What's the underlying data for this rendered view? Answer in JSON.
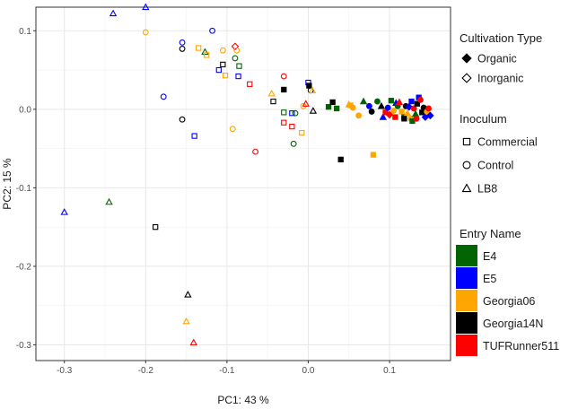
{
  "chart_data": {
    "type": "scatter",
    "xlabel": "PC1:  43 %",
    "ylabel": "PC2:  15 %",
    "xlim": [
      -0.335,
      0.175
    ],
    "ylim": [
      -0.32,
      0.13
    ],
    "xticks": [
      -0.3,
      -0.2,
      -0.1,
      0.0,
      0.1
    ],
    "xtick_labels": [
      "-0.3",
      "-0.2",
      "-0.1",
      "0.0",
      "0.1"
    ],
    "yticks": [
      -0.3,
      -0.2,
      -0.1,
      0.0,
      0.1
    ],
    "ytick_labels": [
      "-0.3",
      "-0.2",
      "-0.1",
      "0.0",
      "0.1"
    ],
    "grid": true,
    "legend_placement": "right",
    "legends": {
      "cultivation": {
        "title": "Cultivation Type",
        "items": [
          {
            "label": "Organic",
            "shape": "diamond",
            "filled": true
          },
          {
            "label": "Inorganic",
            "shape": "diamond",
            "filled": false
          }
        ]
      },
      "inoculum": {
        "title": "Inoculum",
        "items": [
          {
            "label": "Commercial",
            "shape": "square"
          },
          {
            "label": "Control",
            "shape": "circle"
          },
          {
            "label": "LB8",
            "shape": "triangle"
          }
        ]
      },
      "entry": {
        "title": "Entry Name",
        "items": [
          {
            "label": "E4",
            "color": "#006400"
          },
          {
            "label": "E5",
            "color": "#0000ff"
          },
          {
            "label": "Georgia06",
            "color": "#ffa500"
          },
          {
            "label": "Georgia14N",
            "color": "#000000"
          },
          {
            "label": "TUFRunner511",
            "color": "#ff0000"
          }
        ]
      }
    },
    "points": [
      {
        "x": -0.3,
        "y": -0.131,
        "shape": "triangle",
        "filled": false,
        "entry": "E5"
      },
      {
        "x": -0.245,
        "y": -0.118,
        "shape": "triangle",
        "filled": false,
        "entry": "E4"
      },
      {
        "x": -0.24,
        "y": 0.122,
        "shape": "triangle",
        "filled": false,
        "entry": "E5"
      },
      {
        "x": -0.2,
        "y": 0.13,
        "shape": "triangle",
        "filled": false,
        "entry": "E5"
      },
      {
        "x": -0.2,
        "y": 0.098,
        "shape": "circle",
        "filled": false,
        "entry": "Georgia06"
      },
      {
        "x": -0.178,
        "y": 0.016,
        "shape": "circle",
        "filled": false,
        "entry": "E5"
      },
      {
        "x": -0.188,
        "y": -0.15,
        "shape": "square",
        "filled": false,
        "entry": "Georgia14N"
      },
      {
        "x": -0.155,
        "y": 0.085,
        "shape": "circle",
        "filled": false,
        "entry": "E5"
      },
      {
        "x": -0.155,
        "y": 0.077,
        "shape": "circle",
        "filled": false,
        "entry": "Georgia14N"
      },
      {
        "x": -0.155,
        "y": -0.013,
        "shape": "circle",
        "filled": false,
        "entry": "Georgia14N"
      },
      {
        "x": -0.14,
        "y": -0.034,
        "shape": "square",
        "filled": false,
        "entry": "E5"
      },
      {
        "x": -0.148,
        "y": -0.236,
        "shape": "triangle",
        "filled": false,
        "entry": "Georgia14N"
      },
      {
        "x": -0.15,
        "y": -0.27,
        "shape": "triangle",
        "filled": false,
        "entry": "Georgia06"
      },
      {
        "x": -0.141,
        "y": -0.297,
        "shape": "triangle",
        "filled": false,
        "entry": "TUFRunner511"
      },
      {
        "x": -0.135,
        "y": 0.078,
        "shape": "square",
        "filled": false,
        "entry": "Georgia06"
      },
      {
        "x": -0.127,
        "y": 0.073,
        "shape": "triangle",
        "filled": false,
        "entry": "E4"
      },
      {
        "x": -0.125,
        "y": 0.069,
        "shape": "square",
        "filled": false,
        "entry": "Georgia06"
      },
      {
        "x": -0.118,
        "y": 0.1,
        "shape": "circle",
        "filled": false,
        "entry": "E5"
      },
      {
        "x": -0.11,
        "y": 0.05,
        "shape": "square",
        "filled": false,
        "entry": "E5"
      },
      {
        "x": -0.105,
        "y": 0.075,
        "shape": "circle",
        "filled": false,
        "entry": "Georgia06"
      },
      {
        "x": -0.105,
        "y": 0.057,
        "shape": "square",
        "filled": false,
        "entry": "Georgia14N"
      },
      {
        "x": -0.102,
        "y": 0.043,
        "shape": "square",
        "filled": false,
        "entry": "Georgia06"
      },
      {
        "x": -0.093,
        "y": -0.025,
        "shape": "circle",
        "filled": false,
        "entry": "Georgia06"
      },
      {
        "x": -0.09,
        "y": 0.08,
        "shape": "diamond",
        "filled": false,
        "entry": "TUFRunner511"
      },
      {
        "x": -0.088,
        "y": 0.075,
        "shape": "circle",
        "filled": false,
        "entry": "Georgia06"
      },
      {
        "x": -0.09,
        "y": 0.065,
        "shape": "circle",
        "filled": false,
        "entry": "E4"
      },
      {
        "x": -0.085,
        "y": 0.055,
        "shape": "square",
        "filled": false,
        "entry": "E4"
      },
      {
        "x": -0.086,
        "y": 0.042,
        "shape": "square",
        "filled": false,
        "entry": "E5"
      },
      {
        "x": -0.072,
        "y": 0.032,
        "shape": "square",
        "filled": false,
        "entry": "TUFRunner511"
      },
      {
        "x": -0.065,
        "y": -0.054,
        "shape": "circle",
        "filled": false,
        "entry": "TUFRunner511"
      },
      {
        "x": -0.045,
        "y": 0.02,
        "shape": "triangle",
        "filled": false,
        "entry": "Georgia06"
      },
      {
        "x": -0.043,
        "y": 0.01,
        "shape": "square",
        "filled": false,
        "entry": "Georgia14N"
      },
      {
        "x": -0.03,
        "y": 0.042,
        "shape": "circle",
        "filled": false,
        "entry": "TUFRunner511"
      },
      {
        "x": -0.03,
        "y": 0.025,
        "shape": "square",
        "filled": true,
        "entry": "Georgia14N"
      },
      {
        "x": -0.03,
        "y": -0.004,
        "shape": "square",
        "filled": false,
        "entry": "E4"
      },
      {
        "x": -0.03,
        "y": -0.017,
        "shape": "square",
        "filled": false,
        "entry": "TUFRunner511"
      },
      {
        "x": -0.02,
        "y": -0.005,
        "shape": "square",
        "filled": false,
        "entry": "E5"
      },
      {
        "x": -0.02,
        "y": -0.022,
        "shape": "square",
        "filled": false,
        "entry": "TUFRunner511"
      },
      {
        "x": -0.018,
        "y": -0.044,
        "shape": "circle",
        "filled": false,
        "entry": "E4"
      },
      {
        "x": -0.016,
        "y": -0.005,
        "shape": "circle",
        "filled": false,
        "entry": "E4"
      },
      {
        "x": -0.006,
        "y": 0.004,
        "shape": "circle",
        "filled": false,
        "entry": "Georgia06"
      },
      {
        "x": -0.003,
        "y": 0.007,
        "shape": "triangle",
        "filled": false,
        "entry": "TUFRunner511"
      },
      {
        "x": -0.008,
        "y": -0.03,
        "shape": "square",
        "filled": false,
        "entry": "Georgia06"
      },
      {
        "x": 0.0,
        "y": 0.034,
        "shape": "square",
        "filled": false,
        "entry": "E5"
      },
      {
        "x": 0.001,
        "y": 0.03,
        "shape": "square",
        "filled": true,
        "entry": "Georgia14N"
      },
      {
        "x": 0.003,
        "y": 0.024,
        "shape": "circle",
        "filled": false,
        "entry": "Georgia14N"
      },
      {
        "x": 0.005,
        "y": 0.024,
        "shape": "triangle",
        "filled": false,
        "entry": "Georgia06"
      },
      {
        "x": 0.006,
        "y": -0.002,
        "shape": "triangle",
        "filled": false,
        "entry": "Georgia14N"
      },
      {
        "x": 0.025,
        "y": 0.003,
        "shape": "square",
        "filled": true,
        "entry": "E4"
      },
      {
        "x": 0.03,
        "y": 0.009,
        "shape": "square",
        "filled": true,
        "entry": "Georgia14N"
      },
      {
        "x": 0.035,
        "y": 0.001,
        "shape": "square",
        "filled": true,
        "entry": "E4"
      },
      {
        "x": 0.04,
        "y": -0.064,
        "shape": "square",
        "filled": true,
        "entry": "Georgia14N"
      },
      {
        "x": 0.05,
        "y": 0.006,
        "shape": "triangle",
        "filled": true,
        "entry": "Georgia06"
      },
      {
        "x": 0.052,
        "y": 0.005,
        "shape": "square",
        "filled": true,
        "entry": "Georgia06"
      },
      {
        "x": 0.055,
        "y": 0.002,
        "shape": "circle",
        "filled": true,
        "entry": "Georgia06"
      },
      {
        "x": 0.062,
        "y": -0.008,
        "shape": "circle",
        "filled": true,
        "entry": "Georgia06"
      },
      {
        "x": 0.068,
        "y": 0.01,
        "shape": "triangle",
        "filled": true,
        "entry": "E4"
      },
      {
        "x": 0.075,
        "y": 0.004,
        "shape": "circle",
        "filled": true,
        "entry": "E5"
      },
      {
        "x": 0.078,
        "y": -0.003,
        "shape": "circle",
        "filled": true,
        "entry": "Georgia14N"
      },
      {
        "x": 0.08,
        "y": -0.058,
        "shape": "square",
        "filled": true,
        "entry": "Georgia06"
      },
      {
        "x": 0.085,
        "y": 0.01,
        "shape": "circle",
        "filled": true,
        "entry": "E4"
      },
      {
        "x": 0.09,
        "y": 0.004,
        "shape": "triangle",
        "filled": true,
        "entry": "Georgia14N"
      },
      {
        "x": 0.092,
        "y": -0.01,
        "shape": "triangle",
        "filled": true,
        "entry": "E5"
      },
      {
        "x": 0.095,
        "y": -0.004,
        "shape": "square",
        "filled": true,
        "entry": "TUFRunner511"
      },
      {
        "x": 0.098,
        "y": 0.002,
        "shape": "circle",
        "filled": true,
        "entry": "E5"
      },
      {
        "x": 0.1,
        "y": -0.007,
        "shape": "diamond",
        "filled": true,
        "entry": "TUFRunner511"
      },
      {
        "x": 0.102,
        "y": 0.011,
        "shape": "square",
        "filled": true,
        "entry": "E4"
      },
      {
        "x": 0.105,
        "y": -0.002,
        "shape": "circle",
        "filled": true,
        "entry": "Georgia06"
      },
      {
        "x": 0.108,
        "y": 0.008,
        "shape": "triangle",
        "filled": true,
        "entry": "E5"
      },
      {
        "x": 0.11,
        "y": 0.004,
        "shape": "circle",
        "filled": true,
        "entry": "E4"
      },
      {
        "x": 0.112,
        "y": 0.009,
        "shape": "triangle",
        "filled": true,
        "entry": "TUFRunner511"
      },
      {
        "x": 0.115,
        "y": -0.003,
        "shape": "square",
        "filled": true,
        "entry": "Georgia06"
      },
      {
        "x": 0.118,
        "y": -0.01,
        "shape": "square",
        "filled": true,
        "entry": "E4"
      },
      {
        "x": 0.12,
        "y": 0.004,
        "shape": "circle",
        "filled": true,
        "entry": "Georgia14N"
      },
      {
        "x": 0.122,
        "y": -0.005,
        "shape": "triangle",
        "filled": true,
        "entry": "Georgia06"
      },
      {
        "x": 0.124,
        "y": 0.003,
        "shape": "diamond",
        "filled": true,
        "entry": "E5"
      },
      {
        "x": 0.126,
        "y": -0.012,
        "shape": "circle",
        "filled": true,
        "entry": "Georgia06"
      },
      {
        "x": 0.128,
        "y": -0.015,
        "shape": "square",
        "filled": true,
        "entry": "E4"
      },
      {
        "x": 0.13,
        "y": 0.001,
        "shape": "circle",
        "filled": true,
        "entry": "TUFRunner511"
      },
      {
        "x": 0.132,
        "y": -0.006,
        "shape": "triangle",
        "filled": true,
        "entry": "E4"
      },
      {
        "x": 0.134,
        "y": 0.007,
        "shape": "square",
        "filled": true,
        "entry": "Georgia14N"
      },
      {
        "x": 0.136,
        "y": 0.015,
        "shape": "square",
        "filled": true,
        "entry": "E5"
      },
      {
        "x": 0.138,
        "y": 0.012,
        "shape": "circle",
        "filled": true,
        "entry": "TUFRunner511"
      },
      {
        "x": 0.14,
        "y": -0.004,
        "shape": "square",
        "filled": true,
        "entry": "Georgia14N"
      },
      {
        "x": 0.142,
        "y": 0.002,
        "shape": "circle",
        "filled": true,
        "entry": "Georgia14N"
      },
      {
        "x": 0.144,
        "y": -0.01,
        "shape": "diamond",
        "filled": true,
        "entry": "E5"
      },
      {
        "x": 0.146,
        "y": -0.003,
        "shape": "circle",
        "filled": true,
        "entry": "Georgia06"
      },
      {
        "x": 0.148,
        "y": 0.001,
        "shape": "circle",
        "filled": true,
        "entry": "TUFRunner511"
      },
      {
        "x": 0.15,
        "y": -0.008,
        "shape": "diamond",
        "filled": true,
        "entry": "E5"
      },
      {
        "x": 0.118,
        "y": -0.012,
        "shape": "square",
        "filled": true,
        "entry": "Georgia14N"
      },
      {
        "x": 0.127,
        "y": 0.01,
        "shape": "square",
        "filled": true,
        "entry": "E5"
      },
      {
        "x": 0.107,
        "y": -0.01,
        "shape": "square",
        "filled": true,
        "entry": "TUFRunner511"
      },
      {
        "x": 0.133,
        "y": -0.012,
        "shape": "circle",
        "filled": true,
        "entry": "TUFRunner511"
      }
    ]
  }
}
